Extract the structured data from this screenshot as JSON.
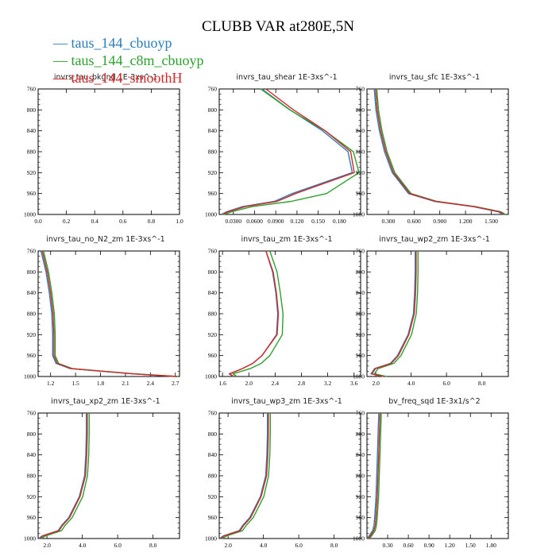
{
  "chart_data": {
    "type": "line",
    "title": "CLUBB VAR at280E,5N",
    "colors": [
      "#2a7db7",
      "#2ca02c",
      "#d62728"
    ],
    "legend": [
      "taus_144_cbuoyp",
      "taus_144_c8m_cbuoyp",
      "taus_144_smoothH"
    ],
    "levels": [
      760,
      800,
      840,
      880,
      920,
      960,
      975,
      985,
      995,
      1000
    ],
    "panels": [
      {
        "name": "invrs_tau_bkgnd",
        "units": "1E-3xs^-1",
        "xticks": [
          "0.0",
          "0.2",
          "0.4",
          "0.6",
          "0.8",
          "1.0"
        ],
        "xlim": [
          0,
          1
        ],
        "series": []
      },
      {
        "name": "invrs_tau_shear",
        "units": "1E-3xs^-1",
        "xticks": [
          "0.0300",
          "0.0600",
          "0.0900",
          "0.120",
          "0.150",
          "0.180"
        ],
        "xlim": [
          0.01,
          0.21
        ],
        "series": [
          {
            "name": "taus_144_cbuoyp",
            "values": [
              0.072,
              0.112,
              0.158,
              0.194,
              0.2,
              0.115,
              0.09,
              0.045,
              0.022,
              0.015
            ]
          },
          {
            "name": "taus_144_c8m_cbuoyp",
            "values": [
              0.067,
              0.108,
              0.158,
              0.198,
              0.206,
              0.16,
              0.11,
              0.055,
              0.025,
              0.015
            ]
          },
          {
            "name": "taus_144_smoothH",
            "values": [
              0.076,
              0.115,
              0.16,
              0.196,
              0.201,
              0.118,
              0.092,
              0.047,
              0.022,
              0.015
            ]
          }
        ]
      },
      {
        "name": "invrs_tau_sfc",
        "units": "1E-3xs^-1",
        "xticks": [
          "0.300",
          "0.600",
          "0.900",
          "1.200",
          "1.500"
        ],
        "xlim": [
          0.05,
          1.7
        ],
        "series": [
          {
            "name": "taus_144_cbuoyp",
            "values": [
              0.15,
              0.17,
              0.21,
              0.27,
              0.36,
              0.55,
              0.85,
              1.3,
              1.6,
              1.65
            ]
          },
          {
            "name": "taus_144_c8m_cbuoyp",
            "values": [
              0.15,
              0.17,
              0.21,
              0.27,
              0.36,
              0.55,
              0.85,
              1.3,
              1.6,
              1.65
            ]
          },
          {
            "name": "taus_144_smoothH",
            "values": [
              0.15,
              0.17,
              0.21,
              0.27,
              0.36,
              0.55,
              0.85,
              1.3,
              1.6,
              1.65
            ]
          }
        ]
      },
      {
        "name": "invrs_tau_no_N2_zm",
        "units": "1E-3xs^-1",
        "xticks": [
          "1.2",
          "1.5",
          "1.8",
          "2.1",
          "2.4",
          "2.7"
        ],
        "xlim": [
          1.05,
          2.75
        ],
        "series": [
          {
            "name": "taus_144_cbuoyp",
            "values": [
              1.1,
              1.16,
              1.2,
              1.23,
              1.24,
              1.24,
              1.28,
              1.45,
              2.2,
              2.72
            ]
          },
          {
            "name": "taus_144_c8m_cbuoyp",
            "values": [
              1.1,
              1.16,
              1.2,
              1.23,
              1.24,
              1.24,
              1.28,
              1.45,
              2.2,
              2.72
            ]
          },
          {
            "name": "taus_144_smoothH",
            "values": [
              1.1,
              1.16,
              1.2,
              1.23,
              1.24,
              1.24,
              1.28,
              1.45,
              2.2,
              2.72
            ]
          }
        ]
      },
      {
        "name": "invrs_tau_zm",
        "units": "1E-3xs^-1",
        "xticks": [
          "1.6",
          "2.0",
          "2.4",
          "2.8",
          "3.2",
          "3.6"
        ],
        "xlim": [
          1.55,
          3.7
        ],
        "series": [
          {
            "name": "taus_144_cbuoyp",
            "values": [
              2.28,
              2.38,
              2.43,
              2.46,
              2.44,
              2.22,
              2.08,
              1.92,
              1.72,
              1.78
            ]
          },
          {
            "name": "taus_144_c8m_cbuoyp",
            "values": [
              2.3,
              2.41,
              2.46,
              2.5,
              2.49,
              2.3,
              2.17,
              2.0,
              1.74,
              1.8
            ]
          },
          {
            "name": "taus_144_smoothH",
            "values": [
              2.26,
              2.37,
              2.42,
              2.45,
              2.43,
              2.2,
              2.06,
              1.9,
              1.71,
              1.77
            ]
          }
        ]
      },
      {
        "name": "invrs_tau_wp2_zm",
        "units": "1E-3xs^-1",
        "xticks": [
          "2.0",
          "4.0",
          "6.0",
          "8.0"
        ],
        "xlim": [
          1.5,
          9.5
        ],
        "series": [
          {
            "name": "taus_144_cbuoyp",
            "values": [
              4.3,
              4.3,
              4.27,
              4.2,
              3.9,
              3.3,
              2.9,
              2.0,
              1.8,
              2.5
            ]
          },
          {
            "name": "taus_144_c8m_cbuoyp",
            "values": [
              4.32,
              4.32,
              4.29,
              4.22,
              3.95,
              3.35,
              2.95,
              2.05,
              1.85,
              2.55
            ]
          },
          {
            "name": "taus_144_smoothH",
            "values": [
              4.28,
              4.28,
              4.25,
              4.18,
              3.87,
              3.28,
              2.88,
              1.98,
              1.78,
              2.45
            ]
          }
        ]
      },
      {
        "name": "invrs_tau_xp2_zm",
        "units": "1E-3xs^-1",
        "xticks": [
          "2.0",
          "4.0",
          "6.0",
          "8.0"
        ],
        "xlim": [
          1.5,
          9.5
        ],
        "series": [
          {
            "name": "taus_144_cbuoyp",
            "values": [
              4.3,
              4.3,
              4.27,
              4.2,
              3.9,
              3.3,
              2.9,
              2.7,
              1.8,
              1.6
            ]
          },
          {
            "name": "taus_144_c8m_cbuoyp",
            "values": [
              4.32,
              4.32,
              4.29,
              4.22,
              3.95,
              3.35,
              2.95,
              2.75,
              1.85,
              1.6
            ]
          },
          {
            "name": "taus_144_smoothH",
            "values": [
              4.28,
              4.28,
              4.25,
              4.18,
              3.87,
              3.28,
              2.88,
              2.68,
              1.78,
              1.6
            ]
          }
        ]
      },
      {
        "name": "invrs_tau_wp3_zm",
        "units": "1E-3xs^-1",
        "xticks": [
          "2.0",
          "4.0",
          "6.0",
          "8.0"
        ],
        "xlim": [
          1.5,
          9.5
        ],
        "series": [
          {
            "name": "taus_144_cbuoyp",
            "values": [
              4.3,
              4.3,
              4.27,
              4.2,
              3.9,
              3.3,
              2.9,
              2.7,
              1.8,
              1.6
            ]
          },
          {
            "name": "taus_144_c8m_cbuoyp",
            "values": [
              4.32,
              4.32,
              4.29,
              4.22,
              3.95,
              3.35,
              2.95,
              2.75,
              1.85,
              1.6
            ]
          },
          {
            "name": "taus_144_smoothH",
            "values": [
              4.28,
              4.28,
              4.25,
              4.18,
              3.87,
              3.28,
              2.88,
              2.68,
              1.78,
              1.6
            ]
          }
        ]
      },
      {
        "name": "bv_freq_sqd",
        "units": "1E-3x1/s^2",
        "xticks": [
          "0.30",
          "0.60",
          "0.90",
          "1.20",
          "1.50",
          "1.80"
        ],
        "xlim": [
          0.0,
          2.05
        ],
        "series": [
          {
            "name": "taus_144_cbuoyp",
            "values": [
              0.19,
              0.18,
              0.17,
              0.16,
              0.15,
              0.13,
              0.12,
              0.1,
              0.05,
              0.02
            ]
          },
          {
            "name": "taus_144_c8m_cbuoyp",
            "values": [
              0.19,
              0.18,
              0.17,
              0.16,
              0.15,
              0.13,
              0.12,
              0.1,
              0.05,
              0.02
            ]
          },
          {
            "name": "taus_144_smoothH",
            "values": [
              0.19,
              0.18,
              0.17,
              0.16,
              0.15,
              0.13,
              0.12,
              0.1,
              0.05,
              0.02
            ]
          }
        ]
      }
    ],
    "ylim": [
      760,
      1000
    ],
    "yticks": [
      "760",
      "800",
      "840",
      "880",
      "920",
      "960",
      "1000"
    ],
    "ylabel": "",
    "xlabel": ""
  }
}
